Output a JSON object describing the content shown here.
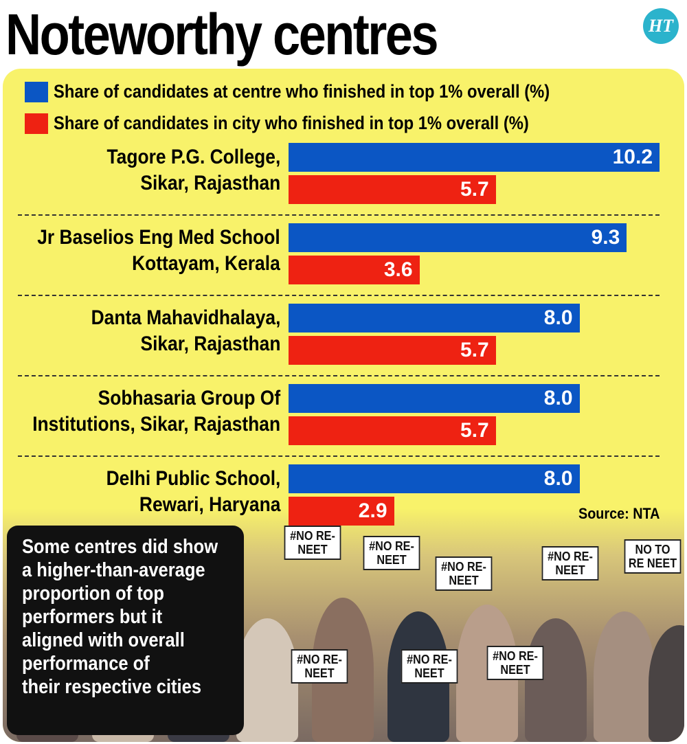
{
  "title": "Noteworthy centres",
  "logo": "HT",
  "source": "Source: NTA",
  "note": [
    "Some centres did show",
    "a higher-than-average",
    "proportion of top",
    "performers but it",
    "aligned with overall",
    "performance of",
    "their respective cities"
  ],
  "photo_placards": [
    "#NO RE-NEET",
    "#NO RE-NEET",
    "#NO RE-NEET",
    "#NO RE-NEET",
    "NO TO RE NEET",
    "#NO RE-NEET",
    "#NO RE-NEET",
    "#NO RE-NEET"
  ],
  "chart_data": {
    "type": "bar",
    "orientation": "horizontal",
    "categories": [
      [
        "Tagore P.G. College,",
        "Sikar, Rajasthan"
      ],
      [
        "Jr Baselios Eng Med School",
        "Kottayam, Kerala"
      ],
      [
        "Danta Mahavidhalaya,",
        "Sikar, Rajasthan"
      ],
      [
        "Sobhasaria Group Of",
        "Institutions, Sikar, Rajasthan"
      ],
      [
        "Delhi Public School,",
        "Rewari, Haryana"
      ]
    ],
    "series": [
      {
        "name": "Share of candidates at centre who finished in top 1% overall (%)",
        "color": "#0b56c4",
        "values": [
          10.2,
          9.3,
          8.0,
          8.0,
          8.0
        ]
      },
      {
        "name": "Share of candidates in city who finished in top 1% overall (%)",
        "color": "#ee2212",
        "values": [
          5.7,
          3.6,
          5.7,
          5.7,
          2.9
        ]
      }
    ],
    "xlim": [
      0,
      10.2
    ],
    "grid": false,
    "legend": "top"
  }
}
